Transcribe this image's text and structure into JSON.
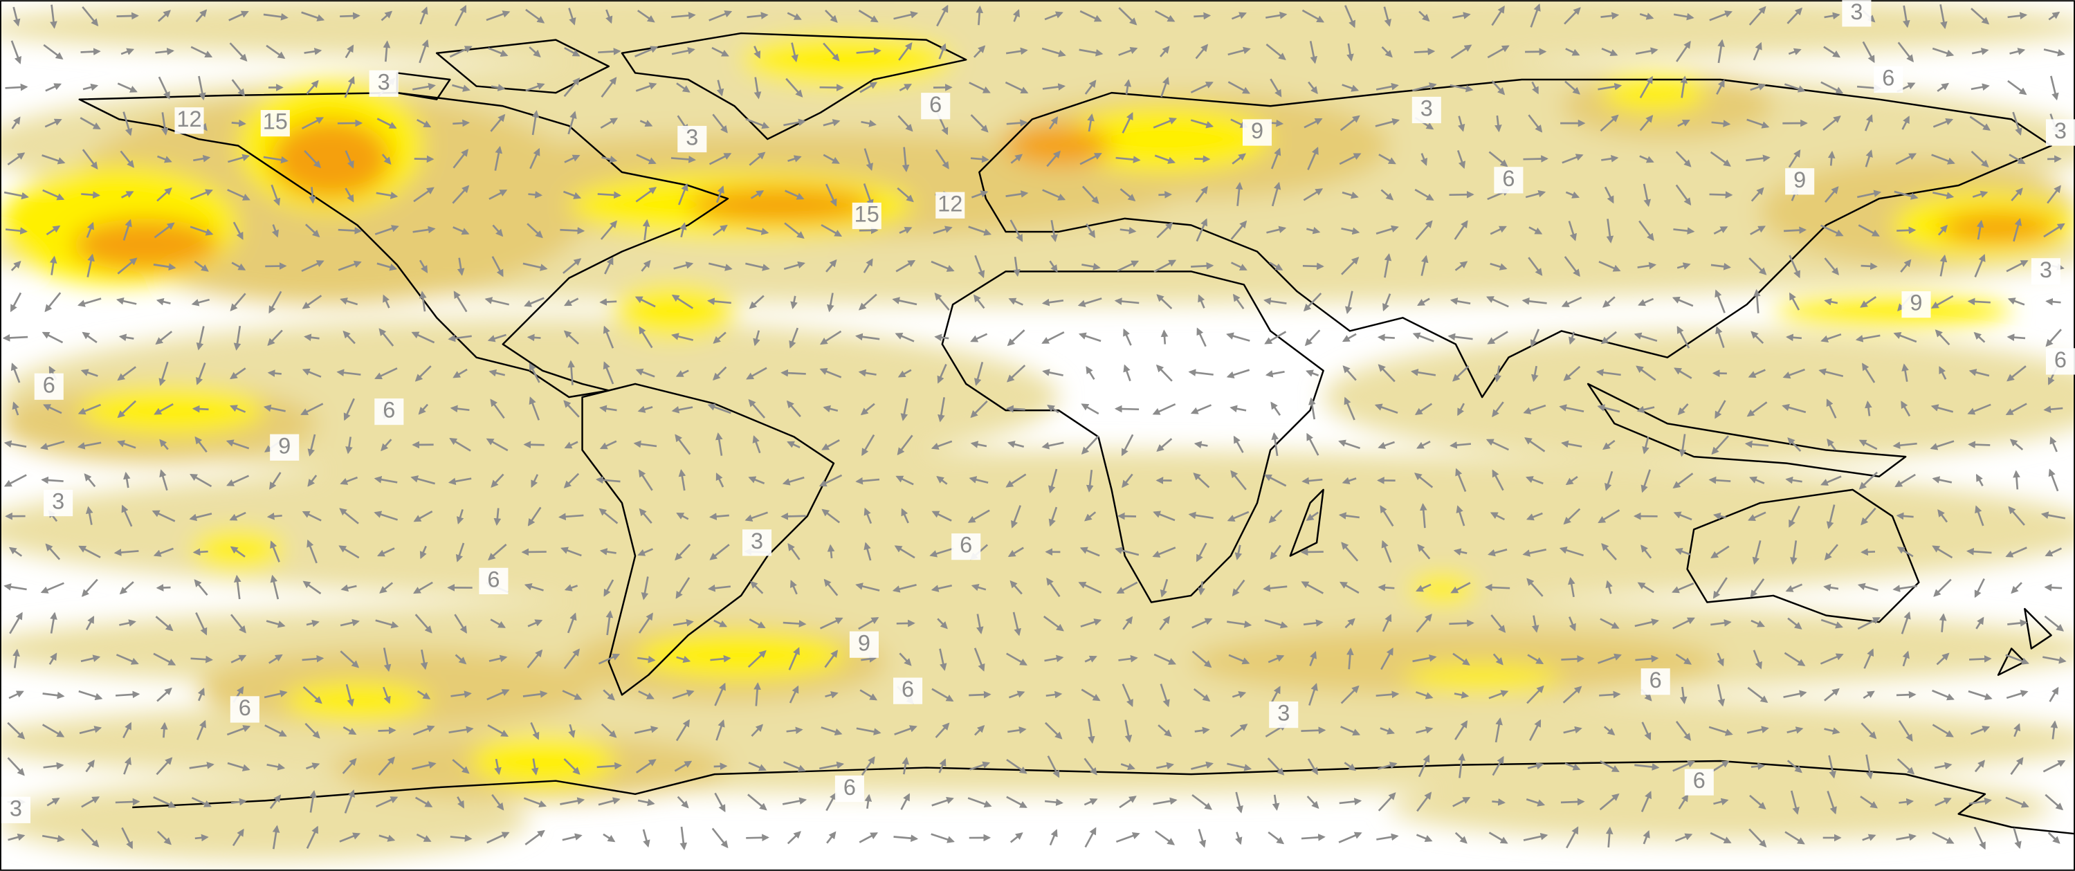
{
  "map": {
    "contour_labels": [
      "3",
      "12",
      "15",
      "3",
      "6",
      "3",
      "9",
      "6",
      "3",
      "6",
      "9",
      "15",
      "12",
      "3",
      "9",
      "6",
      "6",
      "6",
      "9",
      "3",
      "3",
      "6",
      "6",
      "9",
      "6",
      "6",
      "6",
      "3",
      "6",
      "6",
      "3",
      "3"
    ]
  }
}
